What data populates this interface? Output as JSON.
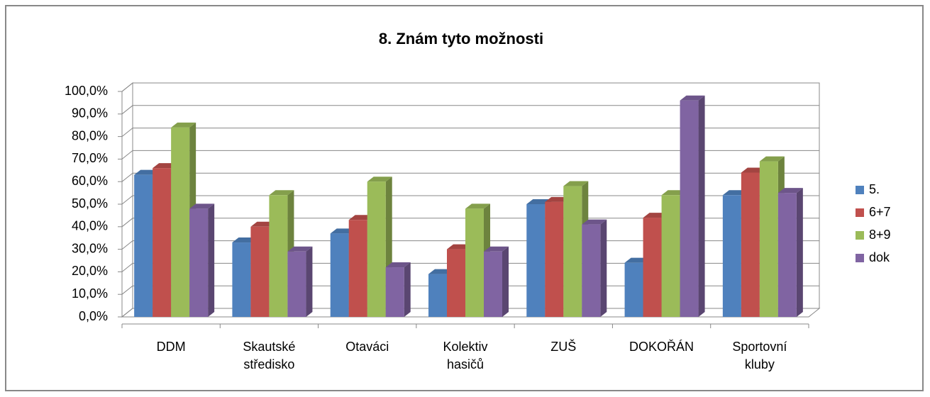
{
  "chart_data": {
    "type": "bar3d",
    "title": "8. Znám tyto možnosti",
    "categories": [
      "DDM",
      "Skautské středisko",
      "Otaváci",
      "Kolektiv hasičů",
      "ZUŠ",
      "DOKOŘÁN",
      "Sportovní kluby"
    ],
    "series": [
      {
        "name": "5.",
        "color": "#4f81bd",
        "values": [
          63,
          33,
          37,
          19,
          50,
          24,
          54
        ]
      },
      {
        "name": "6+7",
        "color": "#c0504d",
        "values": [
          66,
          40,
          43,
          30,
          51,
          44,
          64
        ]
      },
      {
        "name": "8+9",
        "color": "#9bbb59",
        "values": [
          84,
          54,
          60,
          48,
          58,
          54,
          69
        ]
      },
      {
        "name": "dok",
        "color": "#8064a2",
        "values": [
          48,
          29,
          22,
          29,
          41,
          96,
          55
        ]
      }
    ],
    "ylim": [
      0,
      100
    ],
    "yticks": [
      {
        "value": 0,
        "label": "0,0%"
      },
      {
        "value": 10,
        "label": "10,0%"
      },
      {
        "value": 20,
        "label": "20,0%"
      },
      {
        "value": 30,
        "label": "30,0%"
      },
      {
        "value": 40,
        "label": "40,0%"
      },
      {
        "value": 50,
        "label": "50,0%"
      },
      {
        "value": 60,
        "label": "60,0%"
      },
      {
        "value": 70,
        "label": "70,0%"
      },
      {
        "value": 80,
        "label": "80,0%"
      },
      {
        "value": 90,
        "label": "90,0%"
      },
      {
        "value": 100,
        "label": "100,0%"
      }
    ],
    "grid": true,
    "legend": "right"
  }
}
